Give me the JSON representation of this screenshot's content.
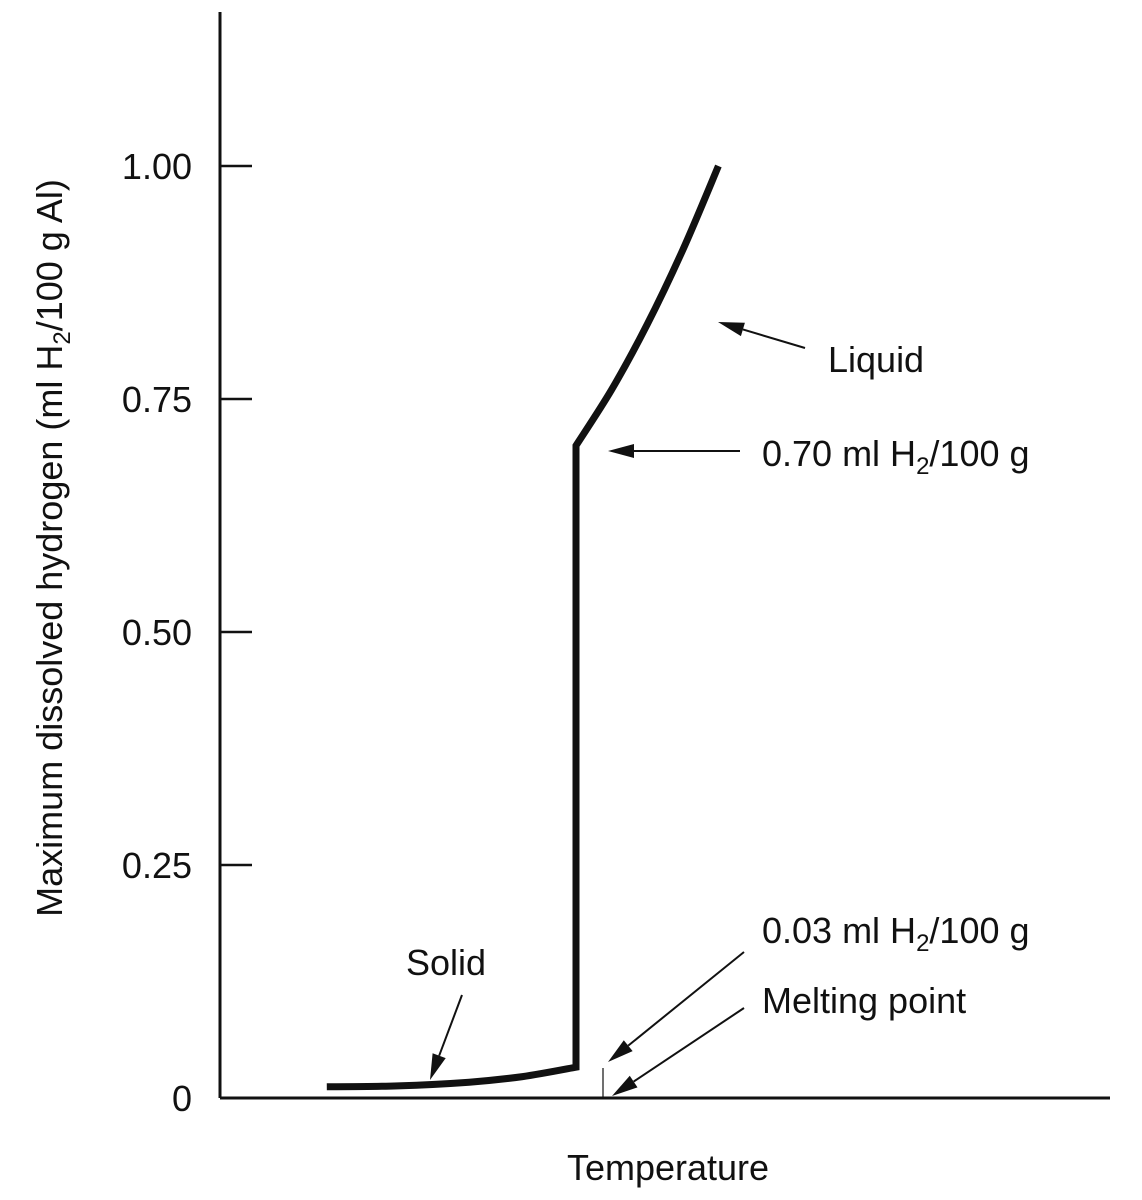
{
  "chart_data": {
    "type": "line",
    "title": "",
    "xlabel": "Temperature",
    "ylabel": {
      "before": "Maximum dissolved hydrogen (ml H",
      "sub": "2",
      "after": "/100 g Al)"
    },
    "ylim": [
      0,
      1.0
    ],
    "yticks": [
      {
        "value": 0,
        "label": "0"
      },
      {
        "value": 0.25,
        "label": "0.25"
      },
      {
        "value": 0.5,
        "label": "0.50"
      },
      {
        "value": 0.75,
        "label": "0.75"
      },
      {
        "value": 1.0,
        "label": "1.00"
      }
    ],
    "x_ticks_shown": false,
    "grid": false,
    "series": [
      {
        "points": [
          {
            "x": 0.12,
            "y": 0.012
          },
          {
            "x": 0.2,
            "y": 0.013
          },
          {
            "x": 0.28,
            "y": 0.017
          },
          {
            "x": 0.34,
            "y": 0.023
          },
          {
            "x": 0.4,
            "y": 0.033
          },
          {
            "x": 0.4,
            "y": 0.7
          },
          {
            "x": 0.44,
            "y": 0.76
          },
          {
            "x": 0.48,
            "y": 0.83
          },
          {
            "x": 0.52,
            "y": 0.91
          },
          {
            "x": 0.56,
            "y": 1.0
          }
        ]
      }
    ],
    "annotations": [
      {
        "id": "liquid",
        "text": "Liquid"
      },
      {
        "id": "solubility-liquid",
        "before": "0.70 ml H",
        "sub": "2",
        "after": "/100 g"
      },
      {
        "id": "solubility-solid",
        "before": "0.03 ml H",
        "sub": "2",
        "after": "/100 g"
      },
      {
        "id": "melting-point",
        "text": "Melting point"
      },
      {
        "id": "solid",
        "text": "Solid"
      }
    ]
  }
}
